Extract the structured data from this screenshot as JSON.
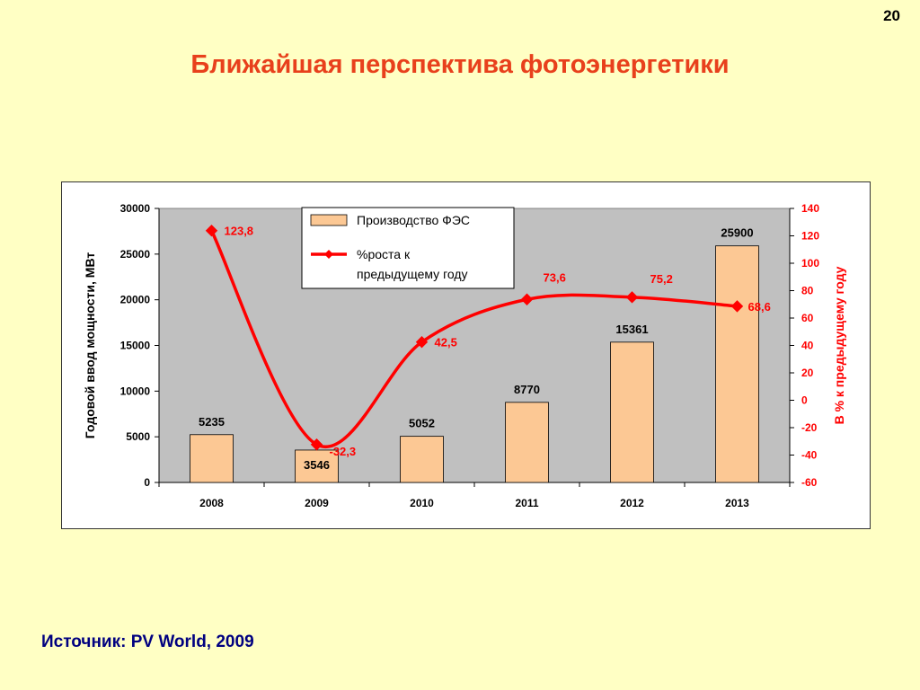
{
  "page_number": "20",
  "title": "Ближайшая перспектива фотоэнергетики",
  "source": "Источник: PV World, 2009",
  "colors": {
    "background": "#ffffc4",
    "title": "#e8401c",
    "plot_area": "#c0c0c0",
    "bar_fill": "#fcc894",
    "line": "#ff0000",
    "source_text": "#000080"
  },
  "chart_data": {
    "type": "bar",
    "categories": [
      "2008",
      "2009",
      "2010",
      "2011",
      "2012",
      "2013"
    ],
    "series": [
      {
        "name": "Производство ФЭС",
        "type": "bar",
        "axis": "left",
        "values": [
          5235,
          3546,
          5052,
          8770,
          15361,
          25900
        ],
        "labels": [
          "5235",
          "3546",
          "5052",
          "8770",
          "15361",
          "25900"
        ]
      },
      {
        "name": "%роста к предыдущему году",
        "type": "line",
        "axis": "right",
        "values": [
          123.8,
          -32.3,
          42.5,
          73.6,
          75.2,
          68.6
        ],
        "labels": [
          "123,8",
          "-32,3",
          "42,5",
          "73,6",
          "75,2",
          "68,6"
        ]
      }
    ],
    "y_left": {
      "label": "Годовой ввод мощности, МВт",
      "min": 0,
      "max": 30000,
      "ticks": [
        "0",
        "5000",
        "10000",
        "15000",
        "20000",
        "25000",
        "30000"
      ]
    },
    "y_right": {
      "label": "В % к предыдущему году",
      "min": -60,
      "max": 140,
      "ticks": [
        "-60",
        "-40",
        "-20",
        "0",
        "20",
        "40",
        "60",
        "80",
        "100",
        "120",
        "140"
      ]
    },
    "legend": {
      "position": "top-center",
      "bar_label": "Производство ФЭС",
      "line_label_1": "%роста к",
      "line_label_2": "предыдущему году"
    },
    "grid": false
  }
}
